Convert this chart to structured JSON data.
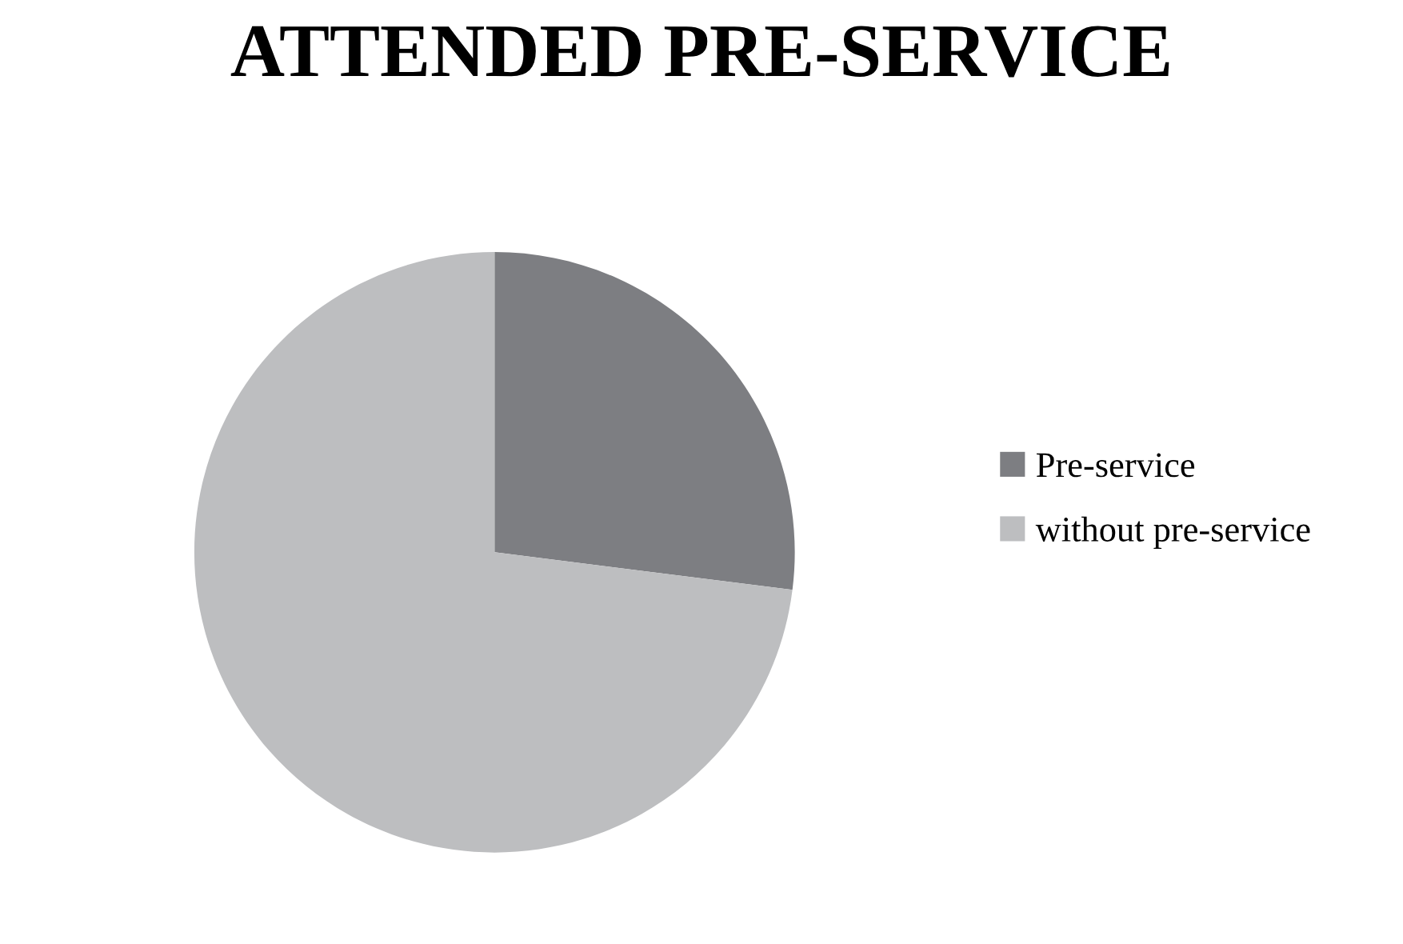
{
  "chart_data": {
    "type": "pie",
    "title": "ATTENDED PRE-SERVICE",
    "categories": [
      "Pre-service",
      "without pre-service"
    ],
    "values": [
      27,
      73
    ],
    "colors": [
      "#7d7e82",
      "#bdbec0"
    ],
    "legend": "right"
  }
}
